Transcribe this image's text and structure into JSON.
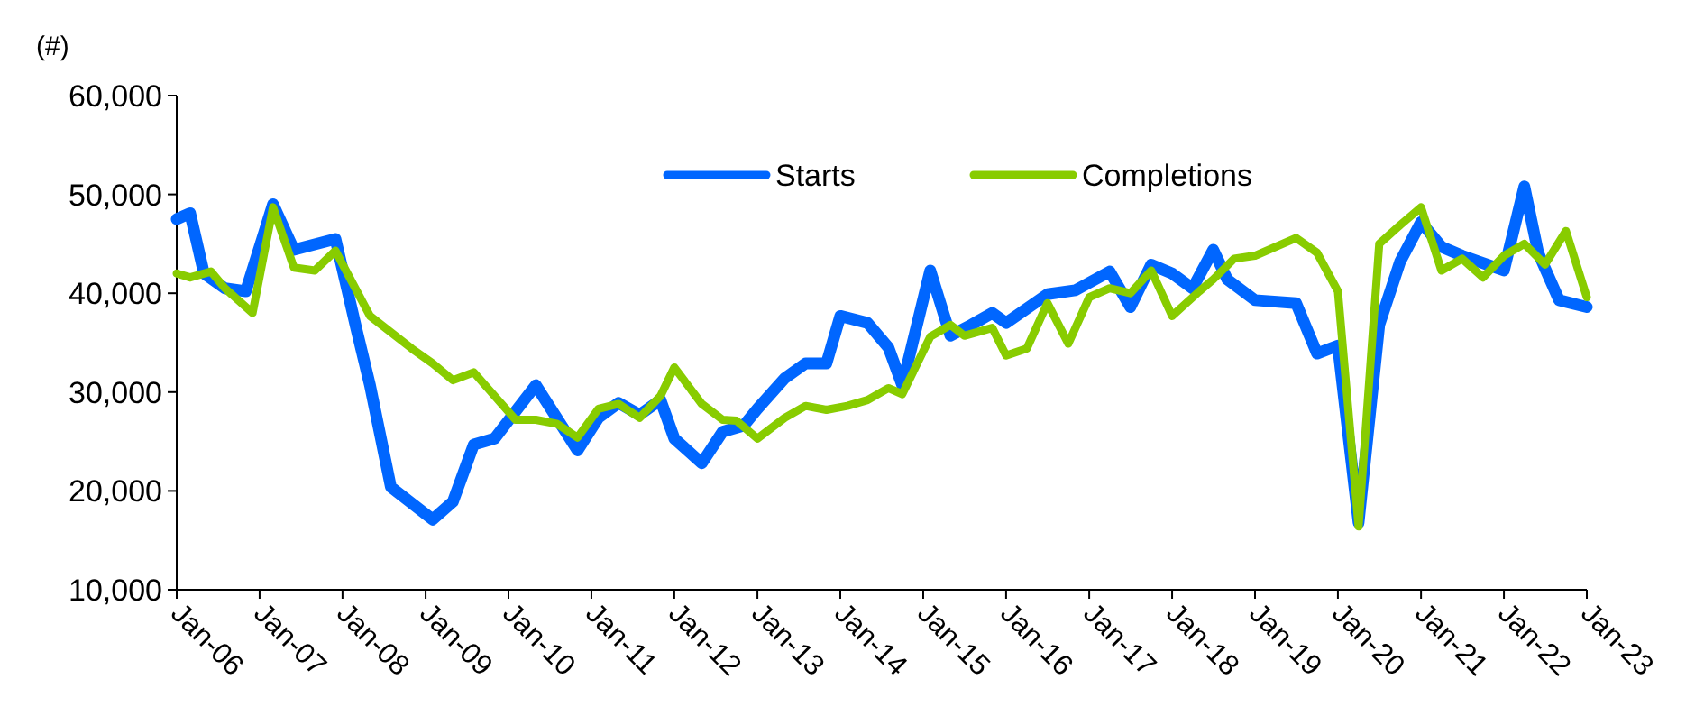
{
  "chart_data": {
    "type": "line",
    "ylabel": "(#)",
    "legend": "top",
    "line_style": "solid",
    "marker": "none",
    "grid": false,
    "xlim": [
      "2006-01",
      "2023-01"
    ],
    "xticks": [
      {
        "value": "2006-01",
        "label": "Jan-06"
      },
      {
        "value": "2007-01",
        "label": "Jan-07"
      },
      {
        "value": "2008-01",
        "label": "Jan-08"
      },
      {
        "value": "2009-01",
        "label": "Jan-09"
      },
      {
        "value": "2010-01",
        "label": "Jan-10"
      },
      {
        "value": "2011-01",
        "label": "Jan-11"
      },
      {
        "value": "2012-01",
        "label": "Jan-12"
      },
      {
        "value": "2013-01",
        "label": "Jan-13"
      },
      {
        "value": "2014-01",
        "label": "Jan-14"
      },
      {
        "value": "2015-01",
        "label": "Jan-15"
      },
      {
        "value": "2016-01",
        "label": "Jan-16"
      },
      {
        "value": "2017-01",
        "label": "Jan-17"
      },
      {
        "value": "2018-01",
        "label": "Jan-18"
      },
      {
        "value": "2019-01",
        "label": "Jan-19"
      },
      {
        "value": "2020-01",
        "label": "Jan-20"
      },
      {
        "value": "2021-01",
        "label": "Jan-21"
      },
      {
        "value": "2022-01",
        "label": "Jan-22"
      },
      {
        "value": "2023-01",
        "label": "Jan-23"
      }
    ],
    "ylim": [
      10000,
      60000
    ],
    "yticks": [
      {
        "value": 10000,
        "label": "10,000"
      },
      {
        "value": 20000,
        "label": "20,000"
      },
      {
        "value": 30000,
        "label": "30,000"
      },
      {
        "value": 40000,
        "label": "40,000"
      },
      {
        "value": 50000,
        "label": "50,000"
      },
      {
        "value": 60000,
        "label": "60,000"
      }
    ],
    "series": [
      {
        "name": "Starts",
        "color": "#0066ff",
        "x": [
          "2006-01",
          "2006-03",
          "2006-05",
          "2006-08",
          "2006-11",
          "2007-03",
          "2007-06",
          "2007-12",
          "2008-03",
          "2008-05",
          "2008-08",
          "2009-02",
          "2009-05",
          "2009-08",
          "2009-11",
          "2010-05",
          "2010-11",
          "2011-02",
          "2011-05",
          "2011-08",
          "2011-11",
          "2012-01",
          "2012-05",
          "2012-08",
          "2012-11",
          "2013-01",
          "2013-05",
          "2013-08",
          "2013-11",
          "2014-01",
          "2014-05",
          "2014-08",
          "2014-10",
          "2015-02",
          "2015-05",
          "2015-08",
          "2015-11",
          "2016-01",
          "2016-07",
          "2016-11",
          "2017-04",
          "2017-07",
          "2017-10",
          "2018-01",
          "2018-04",
          "2018-07",
          "2018-09",
          "2019-01",
          "2019-07",
          "2019-10",
          "2020-01",
          "2020-04",
          "2020-07",
          "2020-10",
          "2021-01",
          "2021-04",
          "2021-07",
          "2022-01",
          "2022-04",
          "2022-06",
          "2022-09",
          "2023-01"
        ],
        "values": [
          47500,
          48100,
          42000,
          40500,
          40200,
          49000,
          44400,
          45500,
          36500,
          30700,
          20400,
          17100,
          18900,
          24700,
          25300,
          30700,
          24100,
          27400,
          28900,
          27700,
          29200,
          25300,
          22800,
          26000,
          26600,
          28300,
          31400,
          32900,
          32900,
          37700,
          37000,
          34500,
          30700,
          42300,
          35700,
          36800,
          38000,
          37000,
          39900,
          40300,
          42200,
          38600,
          42900,
          42000,
          40500,
          44400,
          41400,
          39300,
          39000,
          33900,
          34700,
          16800,
          36800,
          43200,
          47200,
          44700,
          43800,
          42300,
          50800,
          44100,
          39300,
          38600
        ]
      },
      {
        "name": "Completions",
        "color": "#88cc00",
        "x": [
          "2006-01",
          "2006-03",
          "2006-06",
          "2006-08",
          "2006-12",
          "2007-03",
          "2007-06",
          "2007-09",
          "2007-12",
          "2008-05",
          "2008-11",
          "2009-02",
          "2009-05",
          "2009-08",
          "2010-02",
          "2010-05",
          "2010-08",
          "2010-11",
          "2011-02",
          "2011-05",
          "2011-08",
          "2011-11",
          "2012-01",
          "2012-05",
          "2012-08",
          "2012-10",
          "2013-01",
          "2013-05",
          "2013-08",
          "2013-11",
          "2014-02",
          "2014-05",
          "2014-08",
          "2014-10",
          "2015-02",
          "2015-05",
          "2015-07",
          "2015-11",
          "2016-01",
          "2016-04",
          "2016-07",
          "2016-10",
          "2017-01",
          "2017-04",
          "2017-07",
          "2017-10",
          "2018-01",
          "2018-05",
          "2018-07",
          "2018-10",
          "2019-01",
          "2019-07",
          "2019-10",
          "2020-01",
          "2020-04",
          "2020-07",
          "2020-10",
          "2021-01",
          "2021-04",
          "2021-07",
          "2021-10",
          "2022-01",
          "2022-04",
          "2022-07",
          "2022-10",
          "2023-01"
        ],
        "values": [
          42000,
          41600,
          42200,
          40500,
          38000,
          48700,
          42600,
          42300,
          44300,
          37700,
          34400,
          32900,
          31200,
          32000,
          27200,
          27200,
          26800,
          25400,
          28300,
          28800,
          27400,
          29600,
          32500,
          28800,
          27200,
          27100,
          25300,
          27400,
          28600,
          28200,
          28600,
          29200,
          30400,
          29800,
          35600,
          36800,
          35700,
          36500,
          33700,
          34400,
          39000,
          34900,
          39600,
          40500,
          40000,
          42300,
          37700,
          40200,
          41400,
          43500,
          43800,
          45600,
          44100,
          40200,
          16400,
          45000,
          46900,
          48700,
          42300,
          43500,
          41600,
          43800,
          45000,
          42900,
          46300,
          39600
        ]
      }
    ]
  }
}
